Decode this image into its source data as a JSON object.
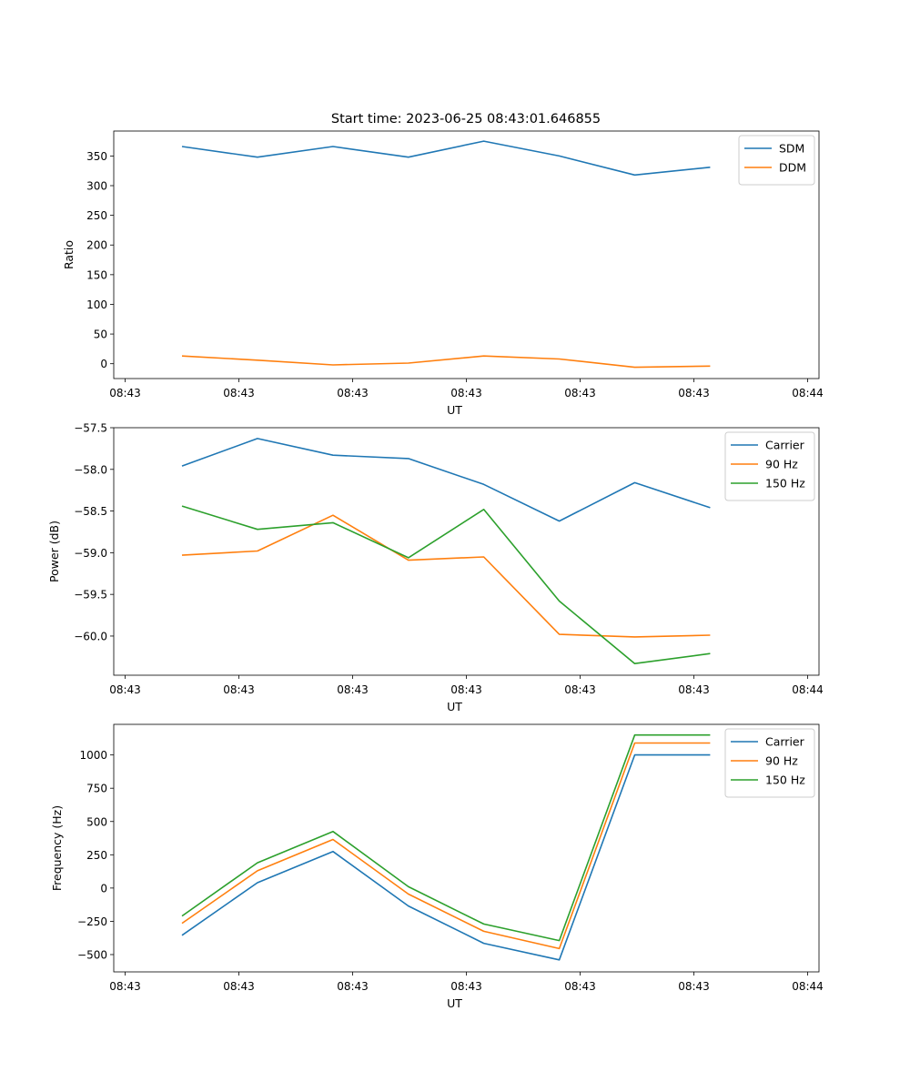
{
  "figure": {
    "title": "Start time: 2023-06-25 08:43:01.646855"
  },
  "chart_data": [
    {
      "type": "line",
      "xlabel": "UT",
      "ylabel": "Ratio",
      "x": [
        0.5,
        1.163,
        1.827,
        2.49,
        3.153,
        3.817,
        4.48,
        5.143
      ],
      "xlim": [
        -0.1,
        6.1
      ],
      "xticks": [
        0,
        1,
        2,
        3,
        4,
        5,
        6
      ],
      "xticklabels": [
        "08:43",
        "08:43",
        "08:43",
        "08:43",
        "08:43",
        "08:43",
        "08:44"
      ],
      "ylim": [
        -25,
        392
      ],
      "yticks": [
        0,
        50,
        100,
        150,
        200,
        250,
        300,
        350
      ],
      "legend_position": "top-right",
      "series": [
        {
          "name": "SDM",
          "color": "#1f77b4",
          "values": [
            366,
            348,
            366,
            348,
            375,
            350,
            318,
            331
          ]
        },
        {
          "name": "DDM",
          "color": "#ff7f0e",
          "values": [
            13,
            6,
            -2,
            1,
            13,
            8,
            -6,
            -4
          ]
        }
      ]
    },
    {
      "type": "line",
      "xlabel": "UT",
      "ylabel": "Power (dB)",
      "x": [
        0.5,
        1.163,
        1.827,
        2.49,
        3.153,
        3.817,
        4.48,
        5.143
      ],
      "xlim": [
        -0.1,
        6.1
      ],
      "xticks": [
        0,
        1,
        2,
        3,
        4,
        5,
        6
      ],
      "xticklabels": [
        "08:43",
        "08:43",
        "08:43",
        "08:43",
        "08:43",
        "08:43",
        "08:44"
      ],
      "ylim": [
        -60.47,
        -57.5
      ],
      "yticks": [
        -60.0,
        -59.5,
        -59.0,
        -58.5,
        -58.0,
        -57.5
      ],
      "yticklabels": [
        "−60.0",
        "−59.5",
        "−59.0",
        "−58.5",
        "−58.0",
        "−57.5"
      ],
      "legend_position": "top-right",
      "series": [
        {
          "name": "Carrier",
          "color": "#1f77b4",
          "values": [
            -57.96,
            -57.63,
            -57.83,
            -57.87,
            -58.18,
            -58.62,
            -58.16,
            -58.46
          ]
        },
        {
          "name": "90 Hz",
          "color": "#ff7f0e",
          "values": [
            -59.03,
            -58.98,
            -58.55,
            -59.09,
            -59.05,
            -59.98,
            -60.01,
            -59.99
          ]
        },
        {
          "name": "150 Hz",
          "color": "#2ca02c",
          "values": [
            -58.44,
            -58.72,
            -58.64,
            -59.06,
            -58.48,
            -59.58,
            -60.33,
            -60.21
          ]
        }
      ]
    },
    {
      "type": "line",
      "xlabel": "UT",
      "ylabel": "Frequency (Hz)",
      "x": [
        0.5,
        1.163,
        1.827,
        2.49,
        3.153,
        3.817,
        4.48,
        5.143
      ],
      "xlim": [
        -0.1,
        6.1
      ],
      "xticks": [
        0,
        1,
        2,
        3,
        4,
        5,
        6
      ],
      "xticklabels": [
        "08:43",
        "08:43",
        "08:43",
        "08:43",
        "08:43",
        "08:43",
        "08:44"
      ],
      "ylim": [
        -630,
        1230
      ],
      "yticks": [
        -500,
        -250,
        0,
        250,
        500,
        750,
        1000
      ],
      "yticklabels": [
        "−500",
        "−250",
        "0",
        "250",
        "500",
        "750",
        "1000"
      ],
      "legend_position": "top-right",
      "series": [
        {
          "name": "Carrier",
          "color": "#1f77b4",
          "values": [
            -355,
            40,
            275,
            -135,
            -415,
            -540,
            1000,
            1000
          ]
        },
        {
          "name": "90 Hz",
          "color": "#ff7f0e",
          "values": [
            -265,
            130,
            365,
            -45,
            -325,
            -455,
            1090,
            1090
          ]
        },
        {
          "name": "150 Hz",
          "color": "#2ca02c",
          "values": [
            -210,
            190,
            425,
            10,
            -270,
            -395,
            1150,
            1150
          ]
        }
      ]
    }
  ]
}
